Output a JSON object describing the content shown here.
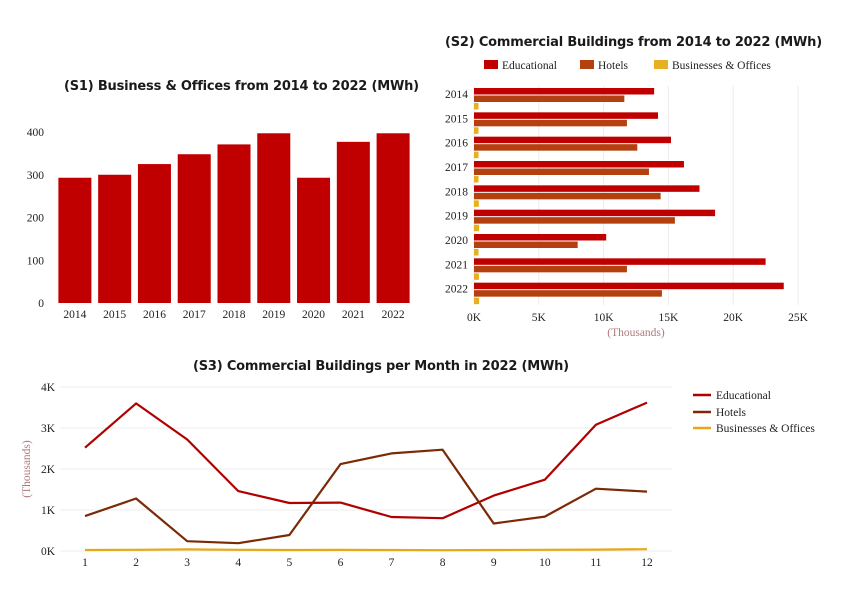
{
  "colors": {
    "educational": "#c00000",
    "hotels": "#b5400f",
    "businesses": "#e6b020",
    "grid": "#ececec",
    "line_educational": "#b00000",
    "line_hotels": "#7a2a05",
    "line_businesses": "#e6a817"
  },
  "chart_data": [
    {
      "id": "s1",
      "type": "bar",
      "title": "(S1) Business & Offices from 2014 to 2022 (MWh)",
      "categories": [
        "2014",
        "2015",
        "2016",
        "2017",
        "2018",
        "2019",
        "2020",
        "2021",
        "2022"
      ],
      "values": [
        293,
        300,
        325,
        348,
        371,
        397,
        293,
        377,
        397
      ],
      "ylim": [
        0,
        400
      ],
      "yticks": [
        0,
        100,
        200,
        300,
        400
      ],
      "xlabel": "",
      "ylabel": "",
      "grid": false
    },
    {
      "id": "s2",
      "type": "bar",
      "orientation": "horizontal",
      "title": "(S2) Commercial Buildings from 2014 to 2022 (MWh)",
      "categories": [
        "2014",
        "2015",
        "2016",
        "2017",
        "2018",
        "2019",
        "2020",
        "2021",
        "2022"
      ],
      "series": [
        {
          "name": "Educational",
          "values": [
            13900,
            14200,
            15200,
            16200,
            17400,
            18600,
            10200,
            22500,
            23900
          ]
        },
        {
          "name": "Hotels",
          "values": [
            11600,
            11800,
            12600,
            13500,
            14400,
            15500,
            8000,
            11800,
            14500
          ]
        },
        {
          "name": "Businesses & Offices",
          "values": [
            293,
            300,
            325,
            348,
            371,
            397,
            293,
            377,
            397
          ]
        }
      ],
      "xlim": [
        0,
        25000
      ],
      "xticks": [
        0,
        5000,
        10000,
        15000,
        20000,
        25000
      ],
      "xtick_labels": [
        "0K",
        "5K",
        "10K",
        "15K",
        "20K",
        "25K"
      ],
      "xlabel": "(Thousands)",
      "legend": "top",
      "grid": true
    },
    {
      "id": "s3",
      "type": "line",
      "title": "(S3) Commercial Buildings per Month in 2022 (MWh)",
      "x": [
        1,
        2,
        3,
        4,
        5,
        6,
        7,
        8,
        9,
        10,
        11,
        12
      ],
      "series": [
        {
          "name": "Educational",
          "values": [
            2520,
            3600,
            2720,
            1460,
            1170,
            1180,
            830,
            800,
            1350,
            1740,
            3080,
            3620
          ]
        },
        {
          "name": "Hotels",
          "values": [
            850,
            1280,
            240,
            190,
            390,
            2120,
            2380,
            2470,
            670,
            840,
            1520,
            1450
          ]
        },
        {
          "name": "Businesses & Offices",
          "values": [
            25,
            30,
            40,
            30,
            25,
            28,
            25,
            20,
            25,
            30,
            35,
            45
          ]
        }
      ],
      "ylim": [
        0,
        4000
      ],
      "yticks": [
        0,
        1000,
        2000,
        3000,
        4000
      ],
      "ytick_labels": [
        "0K",
        "1K",
        "2K",
        "3K",
        "4K"
      ],
      "ylabel": "(Thousands)",
      "legend": "right",
      "grid": true
    }
  ]
}
